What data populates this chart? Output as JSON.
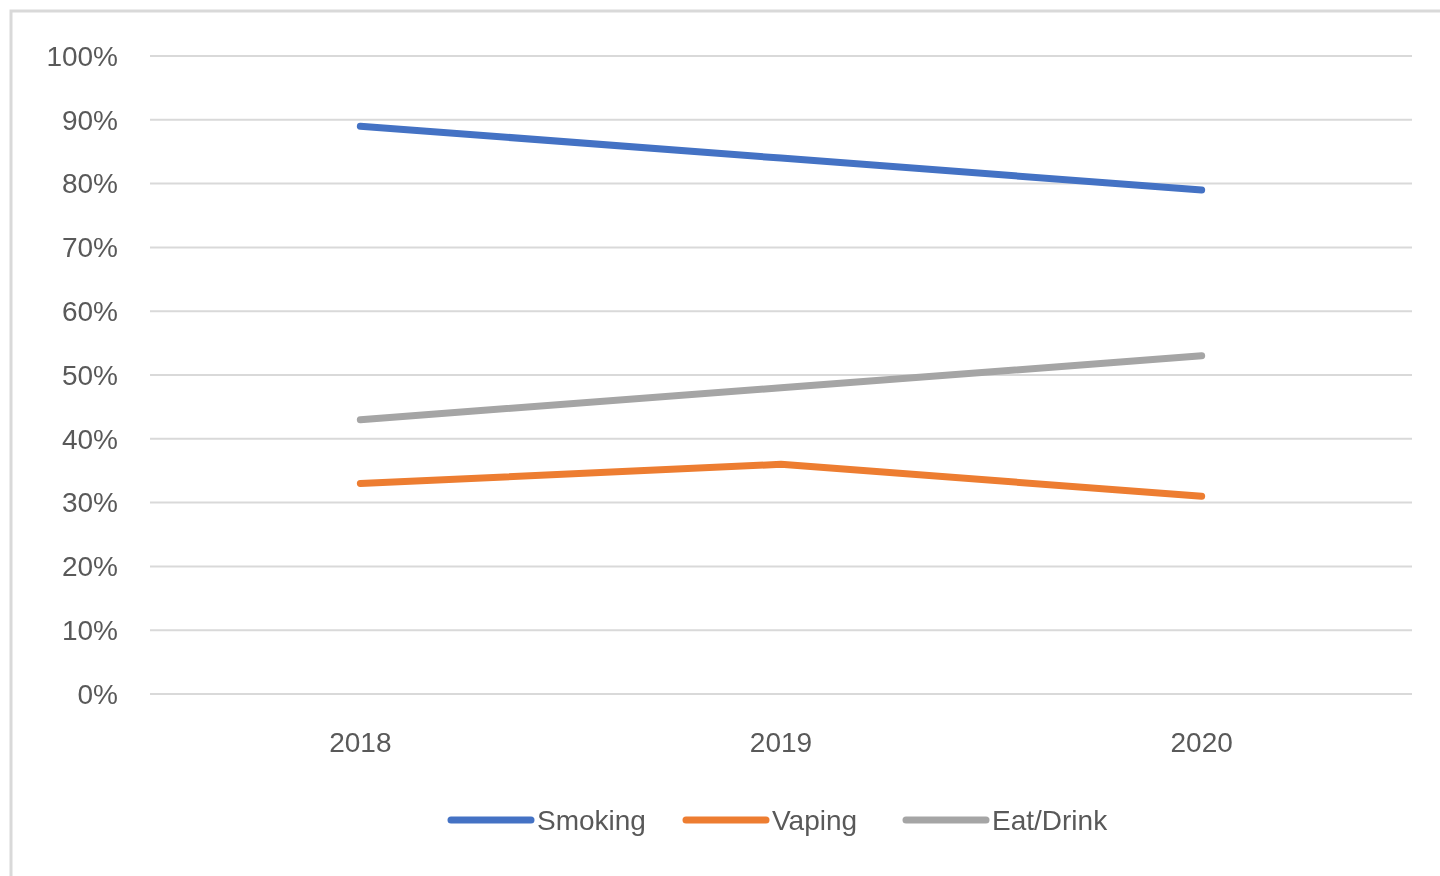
{
  "chart_data": {
    "type": "line",
    "categories": [
      "2018",
      "2019",
      "2020"
    ],
    "series": [
      {
        "name": "Smoking",
        "color": "#4472c4",
        "values": [
          89,
          84,
          79
        ]
      },
      {
        "name": "Vaping",
        "color": "#ed7d31",
        "values": [
          33,
          36,
          31
        ]
      },
      {
        "name": "Eat/Drink",
        "color": "#a5a5a5",
        "values": [
          43,
          48,
          53
        ]
      }
    ],
    "ylim": [
      0,
      100
    ],
    "yticks": [
      {
        "value": 0,
        "label": "0%"
      },
      {
        "value": 10,
        "label": "10%"
      },
      {
        "value": 20,
        "label": "20%"
      },
      {
        "value": 30,
        "label": "30%"
      },
      {
        "value": 40,
        "label": "40%"
      },
      {
        "value": 50,
        "label": "50%"
      },
      {
        "value": 60,
        "label": "60%"
      },
      {
        "value": 70,
        "label": "70%"
      },
      {
        "value": 80,
        "label": "80%"
      },
      {
        "value": 90,
        "label": "90%"
      },
      {
        "value": 100,
        "label": "100%"
      }
    ],
    "grid": "y",
    "legend": "bottom"
  }
}
